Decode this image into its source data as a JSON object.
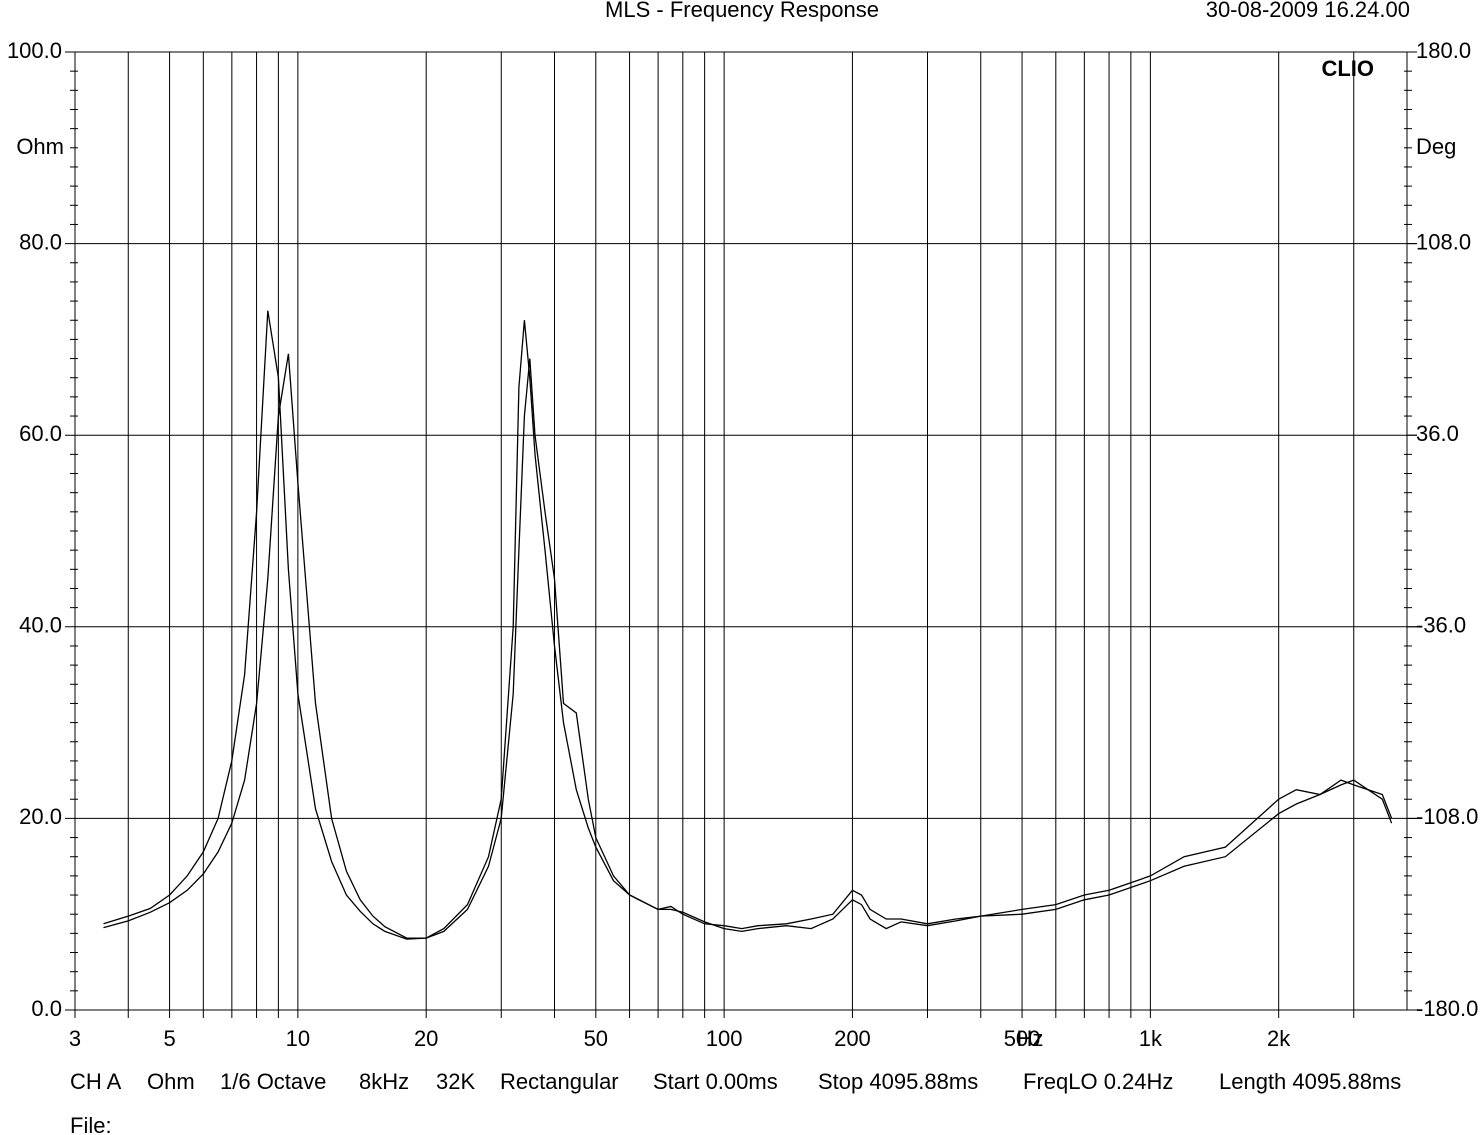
{
  "chart_data": {
    "type": "line",
    "title": "MLS - Frequency Response",
    "date": "30-08-2009 16.24.00",
    "brand": "CLIO",
    "y_label": "Ohm",
    "y2_label": "Deg",
    "x_label": "Hz",
    "log_x": true,
    "grid": true,
    "xlim": [
      3,
      4000
    ],
    "xticks": [
      3,
      5,
      10,
      20,
      50,
      100,
      200,
      500,
      {
        "value": 1000,
        "label": "1k"
      },
      {
        "value": 2000,
        "label": "2k"
      }
    ],
    "xminor": [
      4,
      6,
      7,
      8,
      9,
      30,
      40,
      60,
      70,
      80,
      90,
      300,
      400,
      600,
      700,
      800,
      900,
      3000
    ],
    "ylim": [
      0,
      100
    ],
    "yticks": [
      {
        "value": 0,
        "label": "0.0"
      },
      {
        "value": 20,
        "label": "20.0"
      },
      {
        "value": 40,
        "label": "40.0"
      },
      {
        "value": 60,
        "label": "60.0"
      },
      {
        "value": 80,
        "label": "80.0"
      },
      {
        "value": 100,
        "label": "100.0"
      }
    ],
    "y2lim": [
      -180,
      180
    ],
    "y2ticks": [
      {
        "value": -180,
        "label": "-180.0"
      },
      {
        "value": -108,
        "label": "-108.0"
      },
      {
        "value": -36,
        "label": "-36.0"
      },
      {
        "value": 36,
        "label": "36.0"
      },
      {
        "value": 108,
        "label": "108.0"
      },
      {
        "value": 180,
        "label": "180.0"
      }
    ],
    "x": [
      3.5,
      4,
      4.5,
      5,
      5.5,
      6,
      6.5,
      7,
      7.5,
      8,
      8.5,
      9,
      9.5,
      10,
      11,
      12,
      13,
      14,
      15,
      16,
      18,
      20,
      22,
      25,
      28,
      30,
      32,
      33,
      34,
      35,
      36,
      38,
      40,
      42,
      45,
      48,
      50,
      55,
      60,
      70,
      75,
      80,
      90,
      100,
      110,
      120,
      140,
      160,
      180,
      200,
      210,
      220,
      240,
      260,
      300,
      350,
      400,
      500,
      600,
      700,
      800,
      1000,
      1200,
      1500,
      2000,
      2200,
      2500,
      2800,
      3000,
      3500,
      3680
    ],
    "series": [
      {
        "color": "#000000",
        "values": [
          9.0,
          9.8,
          10.6,
          12,
          14,
          16.5,
          20,
          26,
          35,
          52,
          73,
          66,
          46,
          33,
          21,
          15.5,
          12,
          10.3,
          9,
          8.2,
          7.4,
          7.5,
          8.5,
          11,
          16,
          22,
          40,
          65,
          72,
          66,
          58,
          48,
          38,
          30,
          23,
          19,
          17,
          13.5,
          12,
          10.5,
          10.8,
          10,
          9,
          8.8,
          8.5,
          8.8,
          9,
          9.5,
          10,
          12.5,
          12,
          10.5,
          9.5,
          9.5,
          9,
          9.5,
          9.8,
          10.5,
          11,
          12,
          12.5,
          14,
          16,
          17,
          22,
          23,
          22.5,
          24,
          23.5,
          22.5,
          20
        ]
      },
      {
        "color": "#000000",
        "values": [
          8.6,
          9.3,
          10.2,
          11.2,
          12.5,
          14.2,
          16.5,
          19.5,
          24,
          32,
          45,
          62,
          68.5,
          55,
          32,
          20,
          14.5,
          11.5,
          9.8,
          8.7,
          7.5,
          7.5,
          8.2,
          10.5,
          15,
          20,
          33,
          48,
          62,
          68,
          60,
          52,
          45,
          32,
          31,
          22,
          18,
          14,
          12,
          10.5,
          10.5,
          10.2,
          9.2,
          8.5,
          8.2,
          8.5,
          8.8,
          8.5,
          9.5,
          11.5,
          11,
          9.5,
          8.5,
          9.2,
          8.8,
          9.3,
          9.8,
          10,
          10.5,
          11.5,
          12,
          13.5,
          15,
          16,
          20.5,
          21.5,
          22.5,
          23.5,
          24,
          22,
          19.5
        ]
      }
    ],
    "footer": [
      "CH A",
      "Ohm",
      "1/6 Octave",
      "8kHz",
      "32K",
      "Rectangular",
      "Start 0.00ms",
      "Stop 4095.88ms",
      "FreqLO 0.24Hz",
      "Length 4095.88ms"
    ],
    "file_label": "File:"
  }
}
